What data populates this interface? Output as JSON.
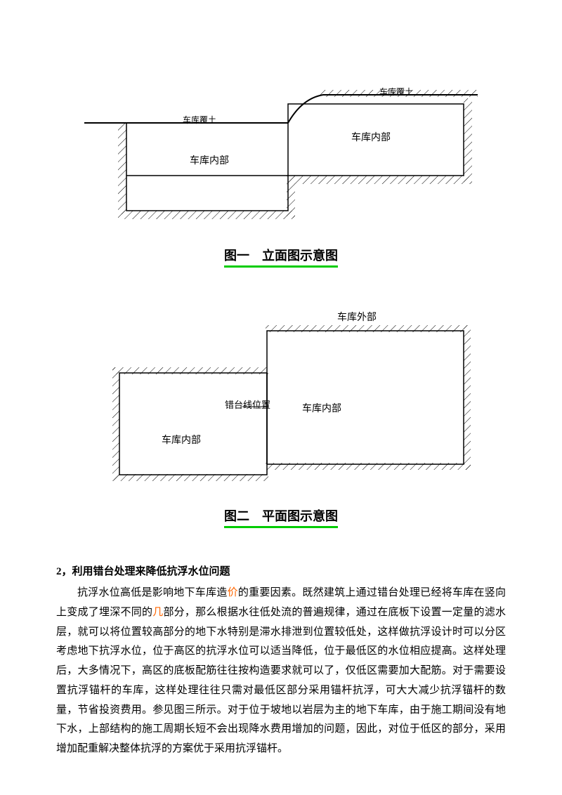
{
  "diagram1": {
    "label_top_left": "车库覆土",
    "label_top_right": "车库覆土",
    "label_interior_left": "车库内部",
    "label_interior_right": "车库内部",
    "stroke_color": "#000000",
    "hatch_color": "#000000",
    "line_width": 1.5
  },
  "caption1": "图一　立面图示意图",
  "diagram2": {
    "label_exterior": "车库外部",
    "label_interior_left": "车库内部",
    "label_interior_right": "车库内部",
    "label_step": "错台线位置",
    "stroke_color": "#000000",
    "line_width": 1.5
  },
  "caption2": "图二　平面图示意图",
  "heading": "2，利用错台处理来降低抗浮水位问题",
  "paragraph_parts": [
    {
      "t": "抗浮水位高低是影响地下车库造",
      "c": ""
    },
    {
      "t": "价",
      "c": "orange"
    },
    {
      "t": "的重要因素。既然建筑上通过错台处理已经将车库在竖向上变成了埋深不同的",
      "c": ""
    },
    {
      "t": "几",
      "c": "orange"
    },
    {
      "t": "部分，那么根据水往低处流的普遍规律，通过在底板下设置一定量的滤水层，就可以将位置较高部分的地下水特别是滞水排泄到位置较低处，这样做抗浮设计时可以分区考虑地下抗浮水位，位于高区的抗浮水位可以适当降低，位于最低区的水位相应提高。这样处理后，大多情况下，高区的底板配筋往往按构造要求就可以了，仅低区需要加大配筋。对于需要设置抗浮锚杆的车库，这样处理往往只需对最低区部分采用锚杆抗浮，可大大减少抗浮锚杆的数量，节省投资费用。参见图三所示。对于位于坡地以岩层为主的地下车库，由于施工期间没有地下水，上部结构的施工周期长短不会出现降水费用增加的问题，因此，对位于低区的部分，采用增加配重解决整体抗浮的方案优于采用抗浮锚杆。",
      "c": ""
    }
  ],
  "colors": {
    "underline": "#00cc00",
    "highlight": "#ff6600",
    "text": "#000000"
  }
}
